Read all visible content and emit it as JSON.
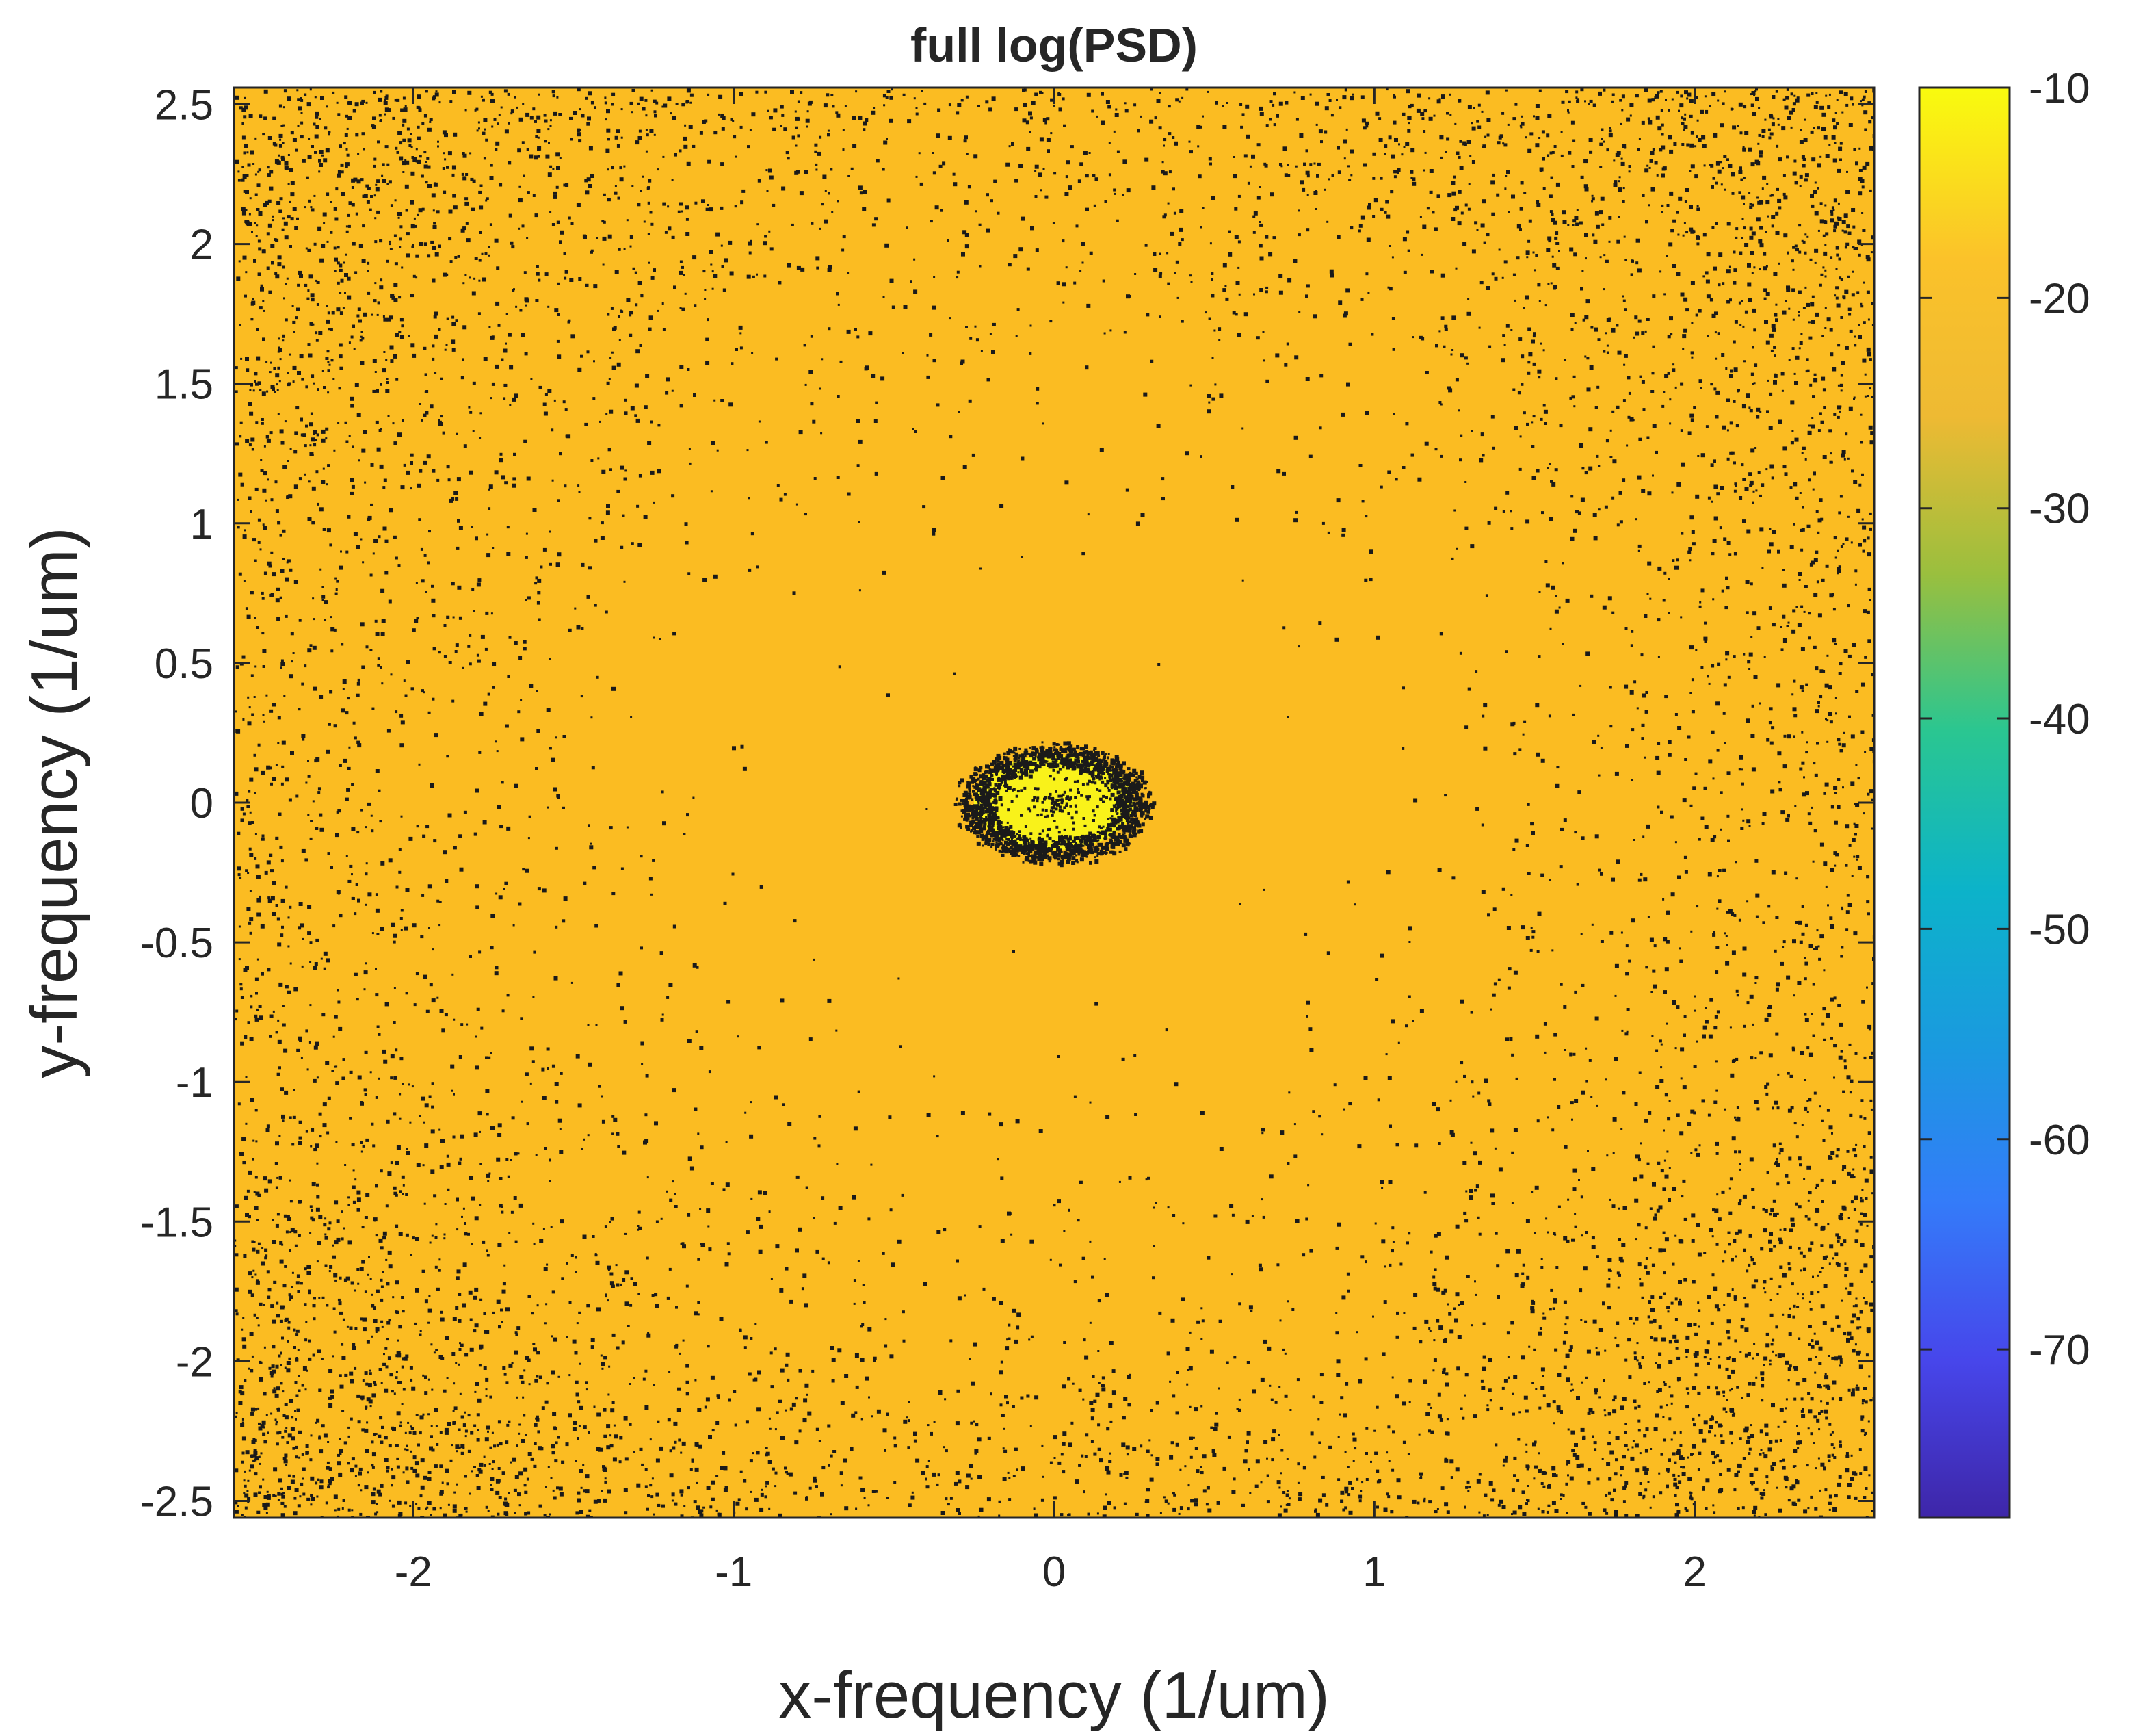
{
  "chart_data": {
    "type": "heatmap",
    "title": "full log(PSD)",
    "xlabel": "x-frequency (1/um)",
    "ylabel": "y-frequency (1/um)",
    "xlim": [
      -2.56,
      2.56
    ],
    "ylim": [
      -2.56,
      2.56
    ],
    "xticks": [
      -2,
      -1,
      0,
      1,
      2
    ],
    "xtick_labels": [
      "-2",
      "-1",
      "0",
      "1",
      "2"
    ],
    "yticks": [
      2.5,
      2,
      1.5,
      1,
      0.5,
      0,
      -0.5,
      -1,
      -1.5,
      -2,
      -2.5
    ],
    "ytick_labels": [
      "2.5",
      "2",
      "1.5",
      "1",
      "0.5",
      "0",
      "-0.5",
      "-1",
      "-1.5",
      "-2",
      "-2.5"
    ],
    "colorbar": {
      "colormap": "parula",
      "clim": [
        -78,
        -10
      ],
      "ticks": [
        -10,
        -20,
        -30,
        -40,
        -50,
        -60,
        -70
      ],
      "tick_labels": [
        "-10",
        "-20",
        "-30",
        "-40",
        "-50",
        "-60",
        "-70"
      ]
    },
    "field": {
      "background_value": -20,
      "center_peak": {
        "x": 0,
        "y": 0,
        "value": -10,
        "radius_x": 0.25,
        "radius_y": 0.17
      },
      "sparse_low_points": "dense toward the four corners, sparse near the center"
    },
    "grid": false,
    "legend": "none"
  },
  "colors": {
    "background_field": "#FBBC22",
    "peak": "#F9F21A",
    "low_values": "#1A1A1A"
  }
}
